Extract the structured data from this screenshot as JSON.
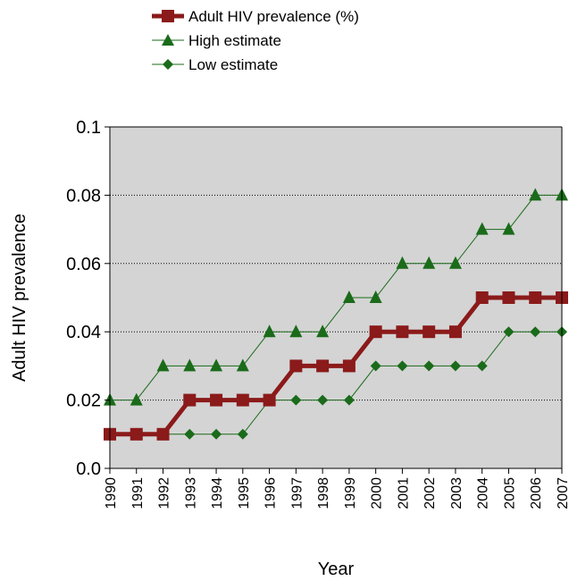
{
  "chart_data": {
    "type": "line",
    "xlabel": "Year",
    "ylabel": "Adult HIV prevalence",
    "ylim": [
      0,
      0.1
    ],
    "yticks": [
      "0.0",
      "0.02",
      "0.04",
      "0.06",
      "0.08",
      "0.1"
    ],
    "grid": "horizontal dotted",
    "legend_position": "top",
    "plot_background": "#d4d4d4",
    "x": [
      "1990",
      "1991",
      "1992",
      "1993",
      "1994",
      "1995",
      "1996",
      "1997",
      "1998",
      "1999",
      "2000",
      "2001",
      "2002",
      "2003",
      "2004",
      "2005",
      "2006",
      "2007"
    ],
    "series": [
      {
        "name": "Adult HIV prevalence (%)",
        "color": "#8b1a1a",
        "marker": "square",
        "values": [
          0.01,
          0.01,
          0.01,
          0.02,
          0.02,
          0.02,
          0.02,
          0.03,
          0.03,
          0.03,
          0.04,
          0.04,
          0.04,
          0.04,
          0.05,
          0.05,
          0.05,
          0.05
        ]
      },
      {
        "name": "High estimate",
        "color": "#1a6b1a",
        "marker": "triangle",
        "values": [
          0.02,
          0.02,
          0.03,
          0.03,
          0.03,
          0.03,
          0.04,
          0.04,
          0.04,
          0.05,
          0.05,
          0.06,
          0.06,
          0.06,
          0.07,
          0.07,
          0.08,
          0.08
        ]
      },
      {
        "name": "Low estimate",
        "color": "#1a6b1a",
        "marker": "diamond",
        "values": [
          0.01,
          0.01,
          0.01,
          0.01,
          0.01,
          0.01,
          0.02,
          0.02,
          0.02,
          0.02,
          0.03,
          0.03,
          0.03,
          0.03,
          0.03,
          0.04,
          0.04,
          0.04
        ]
      }
    ]
  }
}
